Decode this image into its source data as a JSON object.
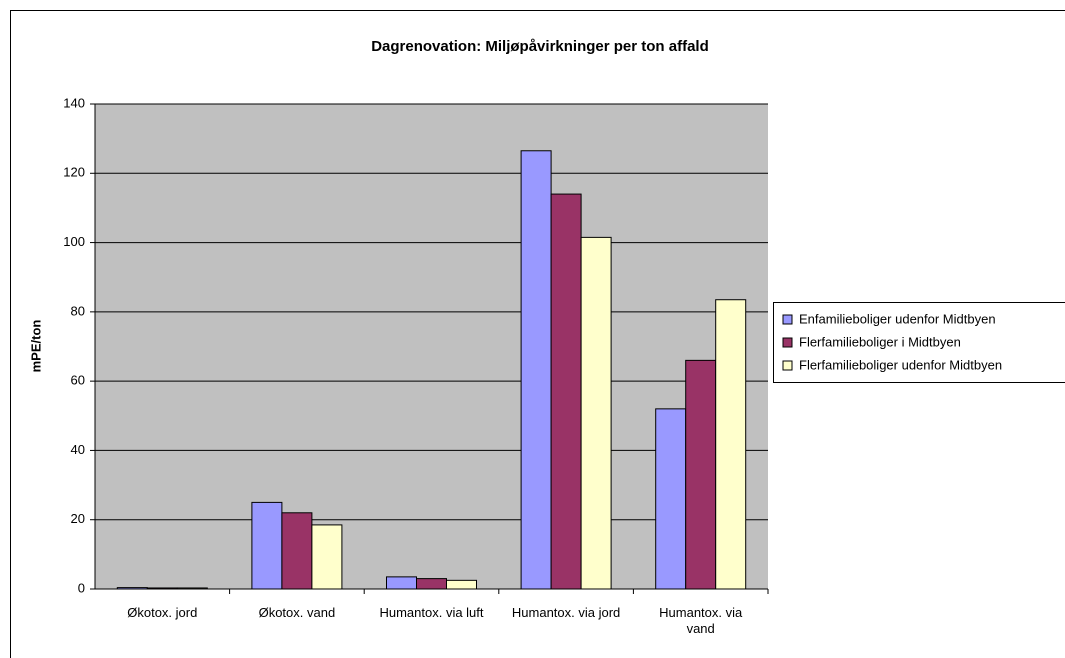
{
  "chart_data": {
    "type": "bar",
    "title": "Dagrenovation: Miljøpåvirkninger per ton affald",
    "ylabel": "mPE/ton",
    "categories": [
      "Økotox. jord",
      "Økotox. vand",
      "Humantox. via luft",
      "Humantox. via jord",
      "Humantox. via vand"
    ],
    "series": [
      {
        "name": "Enfamilieboliger udenfor Midtbyen",
        "color": "#9999ff",
        "values": [
          0.4,
          25,
          3.5,
          126.5,
          52
        ]
      },
      {
        "name": "Flerfamilieboliger i Midtbyen",
        "color": "#993366",
        "values": [
          0.3,
          22,
          3,
          114,
          66
        ]
      },
      {
        "name": "Flerfamilieboliger udenfor Midtbyen",
        "color": "#ffffcc",
        "values": [
          0.3,
          18.5,
          2.5,
          101.5,
          83.5
        ]
      }
    ],
    "ylim": [
      0,
      140
    ],
    "yticks": [
      0,
      20,
      40,
      60,
      80,
      100,
      120,
      140
    ],
    "grid": true,
    "legend": "right"
  }
}
